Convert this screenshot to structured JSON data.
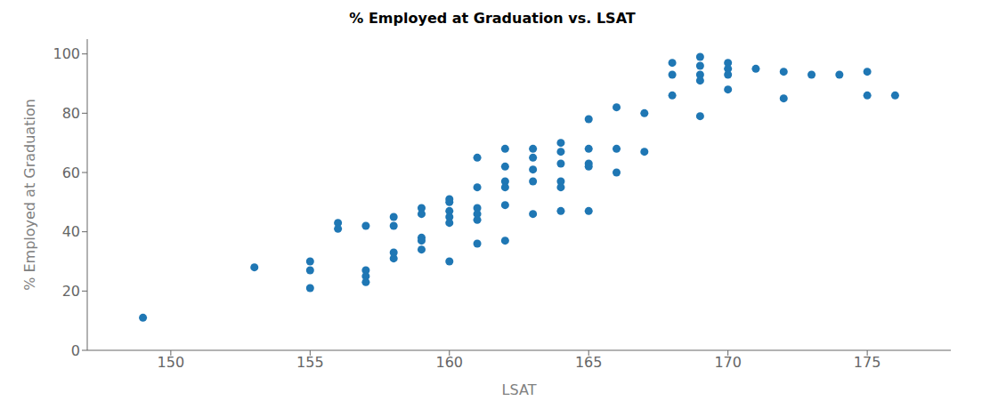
{
  "chart_data": {
    "type": "scatter",
    "title": "% Employed at Graduation vs. LSAT",
    "xlabel": "LSAT",
    "ylabel": "% Employed at Graduation",
    "xlim": [
      147,
      178
    ],
    "ylim": [
      0,
      105
    ],
    "xticks": [
      150,
      155,
      160,
      165,
      170,
      175
    ],
    "yticks": [
      0,
      20,
      40,
      60,
      80,
      100
    ],
    "color": "#1f77b4",
    "grid": false,
    "x": [
      149,
      153,
      155,
      155,
      155,
      156,
      156,
      157,
      157,
      157,
      157,
      158,
      158,
      158,
      158,
      159,
      159,
      159,
      159,
      159,
      160,
      160,
      160,
      160,
      160,
      160,
      161,
      161,
      161,
      161,
      161,
      161,
      162,
      162,
      162,
      162,
      162,
      162,
      163,
      163,
      163,
      163,
      163,
      164,
      164,
      164,
      164,
      164,
      164,
      165,
      165,
      165,
      165,
      165,
      166,
      166,
      166,
      167,
      167,
      168,
      168,
      168,
      169,
      169,
      169,
      169,
      169,
      170,
      170,
      170,
      170,
      171,
      172,
      172,
      173,
      174,
      175,
      175,
      176
    ],
    "values": [
      11,
      28,
      30,
      27,
      21,
      43,
      41,
      42,
      27,
      25,
      23,
      45,
      42,
      31,
      33,
      48,
      46,
      38,
      37,
      34,
      51,
      50,
      47,
      45,
      43,
      30,
      65,
      55,
      48,
      46,
      44,
      36,
      68,
      62,
      57,
      55,
      49,
      37,
      68,
      65,
      61,
      57,
      46,
      70,
      67,
      63,
      57,
      55,
      47,
      78,
      68,
      63,
      62,
      47,
      82,
      68,
      60,
      80,
      67,
      97,
      93,
      86,
      99,
      96,
      93,
      91,
      79,
      97,
      95,
      93,
      88,
      95,
      94,
      85,
      93,
      93,
      94,
      86,
      86
    ]
  }
}
